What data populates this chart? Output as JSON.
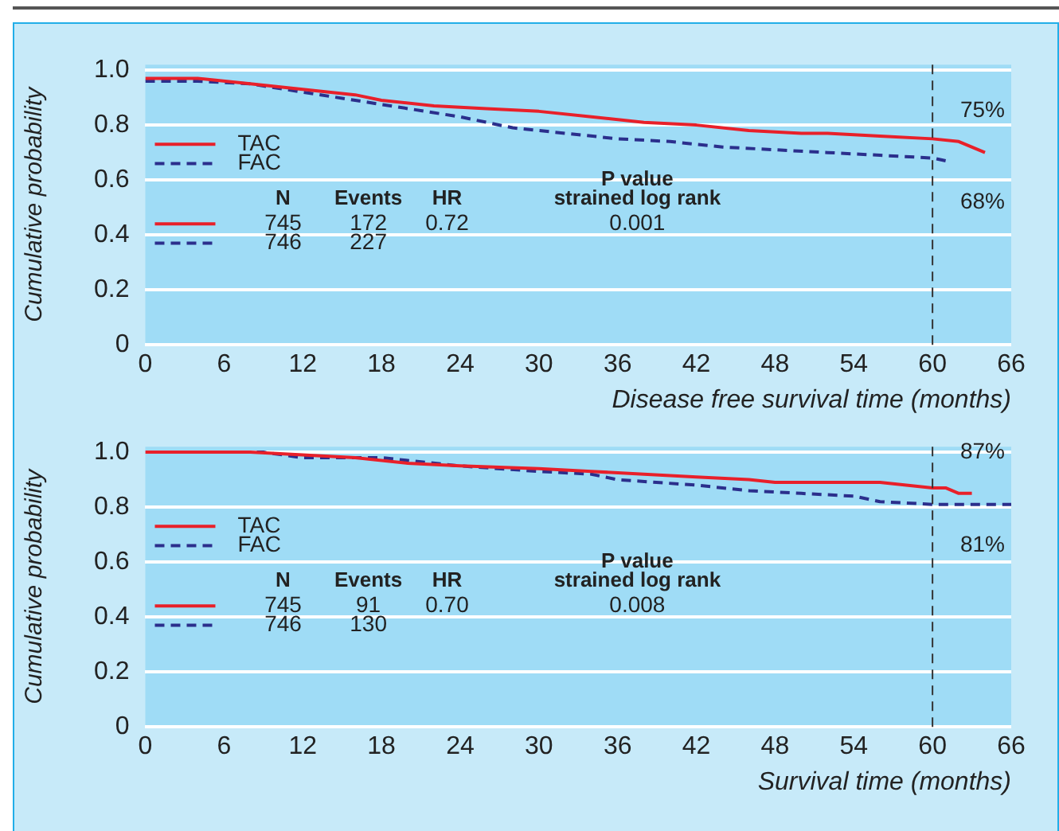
{
  "chart_data": [
    {
      "type": "line",
      "xlabel": "Disease free survival time (months)",
      "ylabel": "Cumulative probability",
      "xlim": [
        0,
        66
      ],
      "xticks": [
        0,
        6,
        12,
        18,
        24,
        30,
        36,
        42,
        48,
        54,
        60,
        66
      ],
      "ylim": [
        0,
        1.02
      ],
      "yticks": [
        0,
        0.2,
        0.4,
        0.6,
        0.8,
        {
          "value": 1,
          "label": "1.0"
        }
      ],
      "grid": "y",
      "legend": "left",
      "marker": "none",
      "series": [
        {
          "name": "TAC",
          "color": "#e8202a",
          "line_style": "solid",
          "x": [
            0,
            4,
            8,
            10,
            14,
            16,
            18,
            22,
            26,
            30,
            34,
            38,
            42,
            46,
            50,
            52,
            56,
            60,
            62,
            64
          ],
          "values": [
            0.97,
            0.97,
            0.95,
            0.94,
            0.92,
            0.91,
            0.89,
            0.87,
            0.86,
            0.85,
            0.83,
            0.81,
            0.8,
            0.78,
            0.77,
            0.77,
            0.76,
            0.75,
            0.74,
            0.7
          ]
        },
        {
          "name": "FAC",
          "color": "#2b2f8c",
          "line_style": "dashed",
          "x": [
            0,
            4,
            8,
            12,
            16,
            20,
            24,
            28,
            32,
            36,
            40,
            44,
            48,
            52,
            56,
            60,
            61
          ],
          "values": [
            0.96,
            0.96,
            0.95,
            0.92,
            0.89,
            0.86,
            0.83,
            0.79,
            0.77,
            0.75,
            0.74,
            0.72,
            0.71,
            0.7,
            0.69,
            0.68,
            0.67
          ]
        }
      ],
      "ref_lines": [
        {
          "axis": "x",
          "value": 60,
          "color": "#333333",
          "line_style": "dashed"
        }
      ],
      "annotations": [
        "N",
        "Events",
        "HR",
        "P value",
        "strained log rank",
        "745",
        "172",
        "0.72",
        "0.001",
        "746",
        "227",
        "75%",
        "68%"
      ]
    },
    {
      "type": "line",
      "xlabel": "Survival time (months)",
      "ylabel": "Cumulative probability",
      "xlim": [
        0,
        66
      ],
      "xticks": [
        0,
        6,
        12,
        18,
        24,
        30,
        36,
        42,
        48,
        54,
        60,
        66
      ],
      "ylim": [
        0,
        1.02
      ],
      "yticks": [
        0,
        0.2,
        0.4,
        0.6,
        0.8,
        {
          "value": 1,
          "label": "1.0"
        }
      ],
      "grid": "y",
      "legend": "left",
      "marker": "none",
      "series": [
        {
          "name": "TAC",
          "color": "#e8202a",
          "line_style": "solid",
          "x": [
            0,
            8,
            12,
            16,
            20,
            24,
            30,
            34,
            38,
            42,
            46,
            48,
            56,
            60,
            61,
            62,
            63
          ],
          "values": [
            1,
            1,
            0.99,
            0.98,
            0.96,
            0.95,
            0.94,
            0.93,
            0.92,
            0.91,
            0.9,
            0.89,
            0.89,
            0.87,
            0.87,
            0.85,
            0.85
          ]
        },
        {
          "name": "FAC",
          "color": "#2b2f8c",
          "line_style": "dashed",
          "x": [
            0,
            9,
            12,
            18,
            24,
            30,
            34,
            36,
            42,
            46,
            50,
            54,
            56,
            60,
            66
          ],
          "values": [
            1,
            1,
            0.98,
            0.98,
            0.95,
            0.93,
            0.92,
            0.9,
            0.88,
            0.86,
            0.85,
            0.84,
            0.82,
            0.81,
            0.81
          ]
        }
      ],
      "ref_lines": [
        {
          "axis": "x",
          "value": 60,
          "color": "#333333",
          "line_style": "dashed"
        }
      ],
      "annotations": [
        "N",
        "Events",
        "HR",
        "P value",
        "strained log rank",
        "745",
        "91",
        "0.70",
        "0.008",
        "746",
        "130",
        "87%",
        "81%"
      ]
    }
  ]
}
